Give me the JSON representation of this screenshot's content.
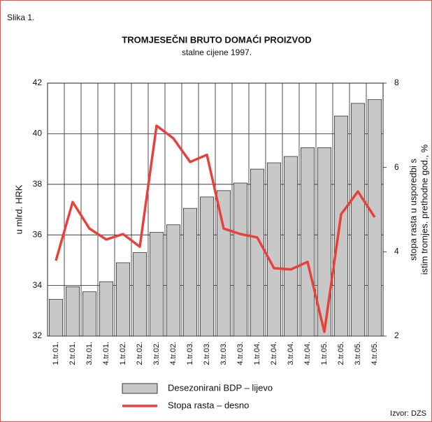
{
  "chart_data": {
    "type": "bar-line",
    "figure_label": "Slika 1.",
    "title": "TROMJESEČNI BRUTO DOMAĆI PROIZVOD",
    "subtitle": "stalne cijene 1997.",
    "y_label": "u mlrd. HRK",
    "y2_label": [
      "stopa rasta u usporedbi s",
      "istim tromjes. prethodne god., %"
    ],
    "source": "Izvor: DZS",
    "categories": [
      "1.tr.01.",
      "2.tr.01.",
      "3.tr.01.",
      "4.tr.01.",
      "1.tr.02.",
      "2.tr.02.",
      "3.tr.02.",
      "4.tr.02.",
      "1.tr.03.",
      "2.tr.03.",
      "3.tr.03.",
      "4.tr.03.",
      "1.tr.04.",
      "2.tr.04.",
      "3.tr.04.",
      "4.tr.04.",
      "1.tr.05.",
      "2.tr.05.",
      "3.tr.05.",
      "4.tr.05."
    ],
    "series": [
      {
        "name": "Desezonirani BDP – lijevo",
        "type": "bar",
        "axis": "y",
        "color": "#c8c8c8",
        "values": [
          33.45,
          33.95,
          33.75,
          34.15,
          34.9,
          35.3,
          36.1,
          36.4,
          37.05,
          37.5,
          37.75,
          38.05,
          38.6,
          38.85,
          39.1,
          39.45,
          39.45,
          40.7,
          41.2,
          41.35
        ]
      },
      {
        "name": "Stopa rasta – desno",
        "type": "line",
        "axis": "y2",
        "color": "#e8403a",
        "values": [
          3.79,
          5.18,
          4.55,
          4.29,
          4.42,
          4.12,
          6.99,
          6.69,
          6.13,
          6.3,
          4.55,
          4.42,
          4.34,
          3.61,
          3.58,
          3.76,
          2.1,
          4.89,
          5.43,
          4.82
        ]
      }
    ],
    "ylim": [
      32,
      42
    ],
    "yticks": [
      32,
      34,
      36,
      38,
      40,
      42
    ],
    "y2lim": [
      2,
      8
    ],
    "y2ticks": [
      2,
      4,
      6,
      8
    ],
    "grid": true
  }
}
